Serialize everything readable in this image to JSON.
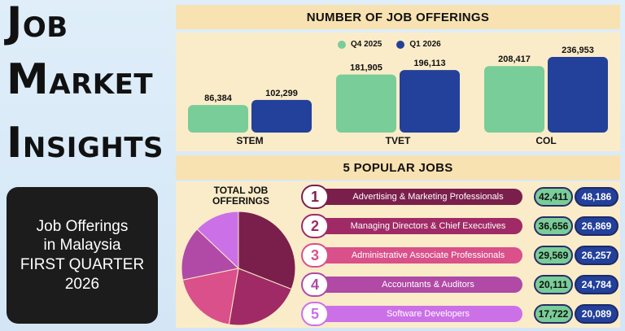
{
  "headline": {
    "line1_first": "J",
    "line1_rest": "OB",
    "line2_first": "M",
    "line2_rest": "ARKET",
    "line3_first": "I",
    "line3_rest": "NSIGHTS"
  },
  "subtitle": {
    "line1": "Job Offerings",
    "line2": "in Malaysia",
    "line3": "FIRST QUARTER",
    "line4": "2026"
  },
  "colors": {
    "q4": "#79cd98",
    "q1": "#23409a",
    "panel_bg": "#fbecc9",
    "header_bg": "#f9e2b1"
  },
  "chart_data": [
    {
      "type": "bar",
      "title": "NUMBER OF JOB OFFERINGS",
      "categories": [
        "STEM",
        "TVET",
        "COL"
      ],
      "series": [
        {
          "name": "Q4 2025",
          "values": [
            86384,
            181905,
            208417
          ],
          "labels": [
            "86,384",
            "181,905",
            "208,417"
          ]
        },
        {
          "name": "Q1 2026",
          "values": [
            102299,
            196113,
            236953
          ],
          "labels": [
            "102,299",
            "196,113",
            "236,953"
          ]
        }
      ],
      "ylim": [
        0,
        260000
      ],
      "legend": "top-center",
      "grid": false
    },
    {
      "type": "pie",
      "title": "TOTAL JOB OFFERINGS",
      "categories": [
        "Advertising & Marketing Professionals",
        "Managing Directors & Chief Executives",
        "Administrative Associate Professionals",
        "Accountants & Auditors",
        "Software Developers"
      ],
      "values": [
        90597,
        63525,
        55826,
        44895,
        37811
      ],
      "colors": [
        "#7a1f4c",
        "#a02a66",
        "#d9508a",
        "#b04aa6",
        "#cc70e8"
      ]
    },
    {
      "type": "table",
      "title": "5 POPULAR JOBS",
      "rows": [
        {
          "rank": "1",
          "job": "Advertising & Marketing Professionals",
          "q4": "42,411",
          "q1": "48,186",
          "color": "#7a1f4c"
        },
        {
          "rank": "2",
          "job": "Managing Directors & Chief Executives",
          "q4": "36,656",
          "q1": "26,869",
          "color": "#a02a66"
        },
        {
          "rank": "3",
          "job": "Administrative Associate Professionals",
          "q4": "29,569",
          "q1": "26,257",
          "color": "#d9508a"
        },
        {
          "rank": "4",
          "job": "Accountants & Auditors",
          "q4": "20,111",
          "q1": "24,784",
          "color": "#b04aa6"
        },
        {
          "rank": "5",
          "job": "Software Developers",
          "q4": "17,722",
          "q1": "20,089",
          "color": "#cc70e8"
        }
      ]
    }
  ]
}
